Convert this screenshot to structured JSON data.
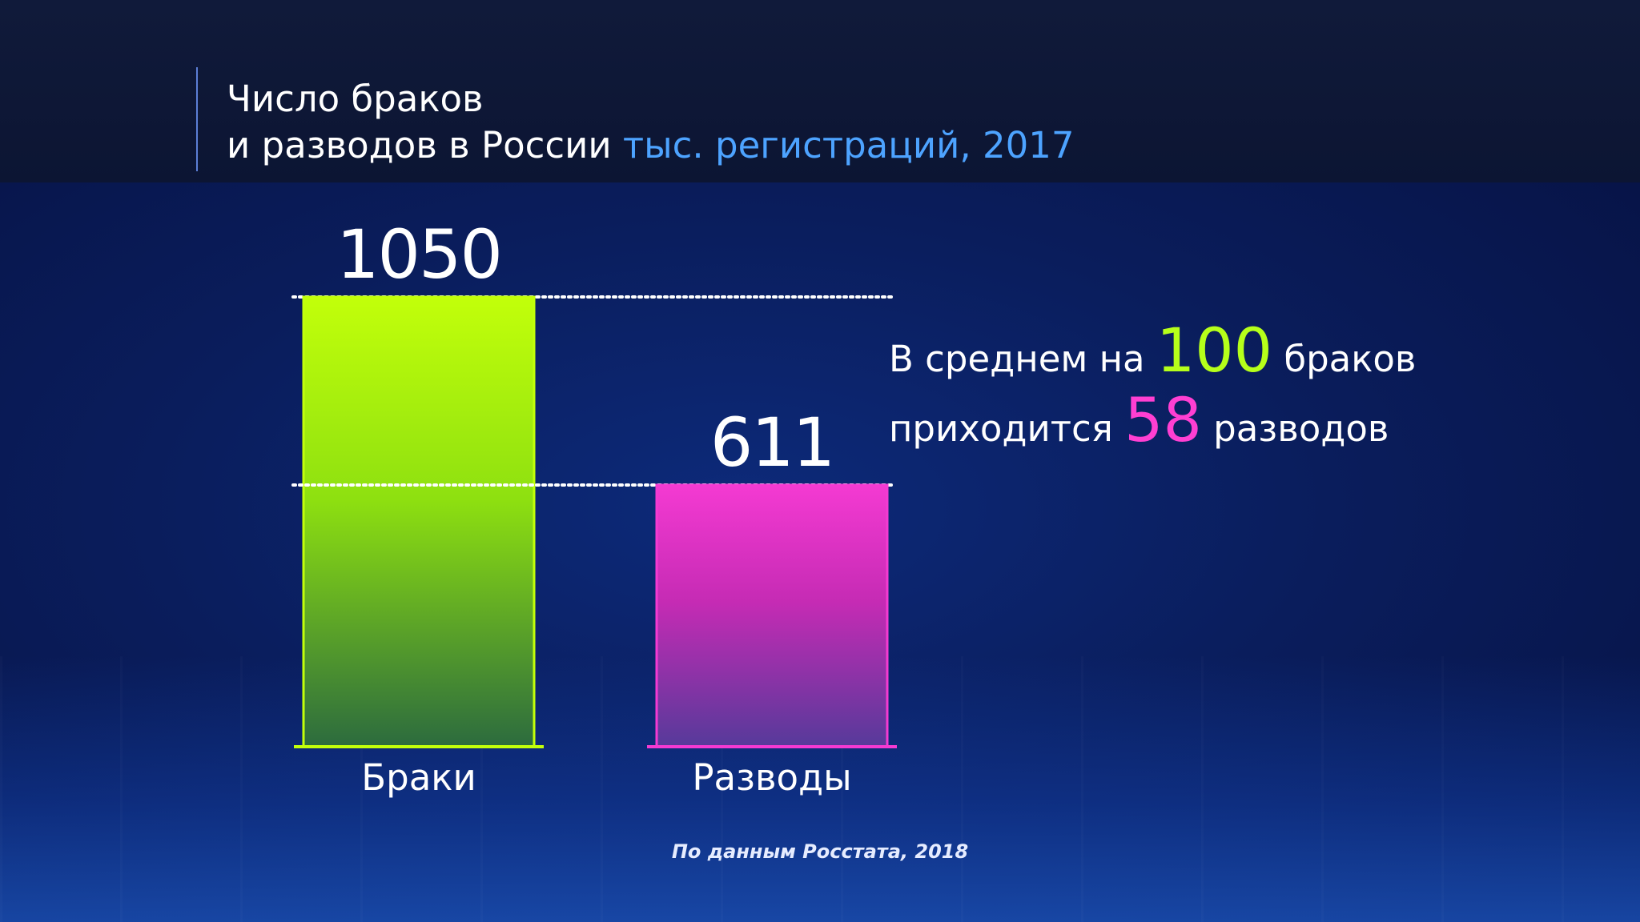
{
  "title": {
    "line1": "Число браков",
    "line2": "и разводов в России",
    "unit": "тыс. регистраций, 2017"
  },
  "chart_data": {
    "type": "bar",
    "categories": [
      "Браки",
      "Разводы"
    ],
    "values": [
      1050,
      611
    ],
    "value_labels": [
      "1050",
      "611"
    ],
    "ylim": [
      0,
      1050
    ],
    "grid": false,
    "colors": {
      "Браки": {
        "top": "#c2ff0a",
        "mid": "#8ee010",
        "bottom": "#2c6b3e",
        "edge": "#c2ff0a"
      },
      "Разводы": {
        "top": "#f43ad2",
        "mid": "#c52bb4",
        "bottom": "#563a9a",
        "edge": "#f43ad2"
      }
    }
  },
  "note": {
    "prefix1": "В среднем на",
    "num1": "100",
    "suffix1": "браков",
    "prefix2": "приходится",
    "num2": "58",
    "suffix2": "разводов"
  },
  "source": "По данным Росстата, 2018"
}
